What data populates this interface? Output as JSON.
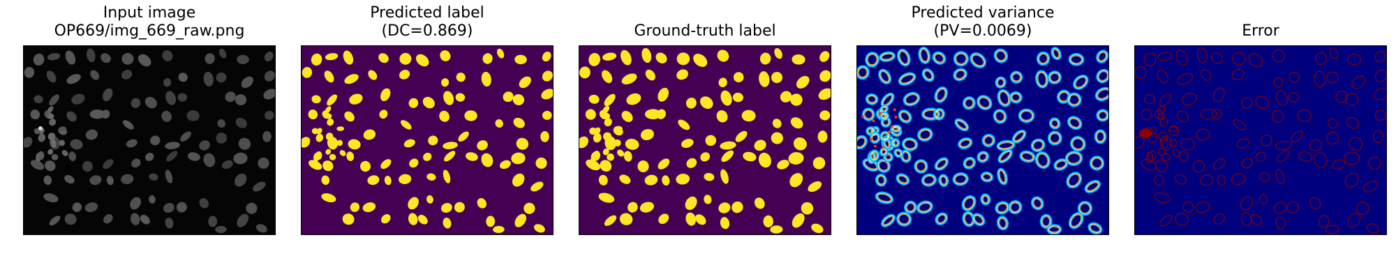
{
  "panels": [
    {
      "title_lines": [
        "Input image",
        "OP669/img_669_raw.png"
      ],
      "mode": "raw"
    },
    {
      "title_lines": [
        "Predicted label",
        "(DC=0.869)"
      ],
      "mode": "pred"
    },
    {
      "title_lines": [
        "Ground-truth label"
      ],
      "mode": "gt"
    },
    {
      "title_lines": [
        "Predicted variance",
        "(PV=0.0069)"
      ],
      "mode": "var"
    },
    {
      "title_lines": [
        "Error"
      ],
      "mode": "err"
    }
  ],
  "colors": {
    "raw_bg": "#050505",
    "label_bg": "#440154",
    "label_fg": "#fde725",
    "var_bg": "#00007f",
    "err_bg": "#00007f",
    "err_fg": "#8b0000"
  }
}
